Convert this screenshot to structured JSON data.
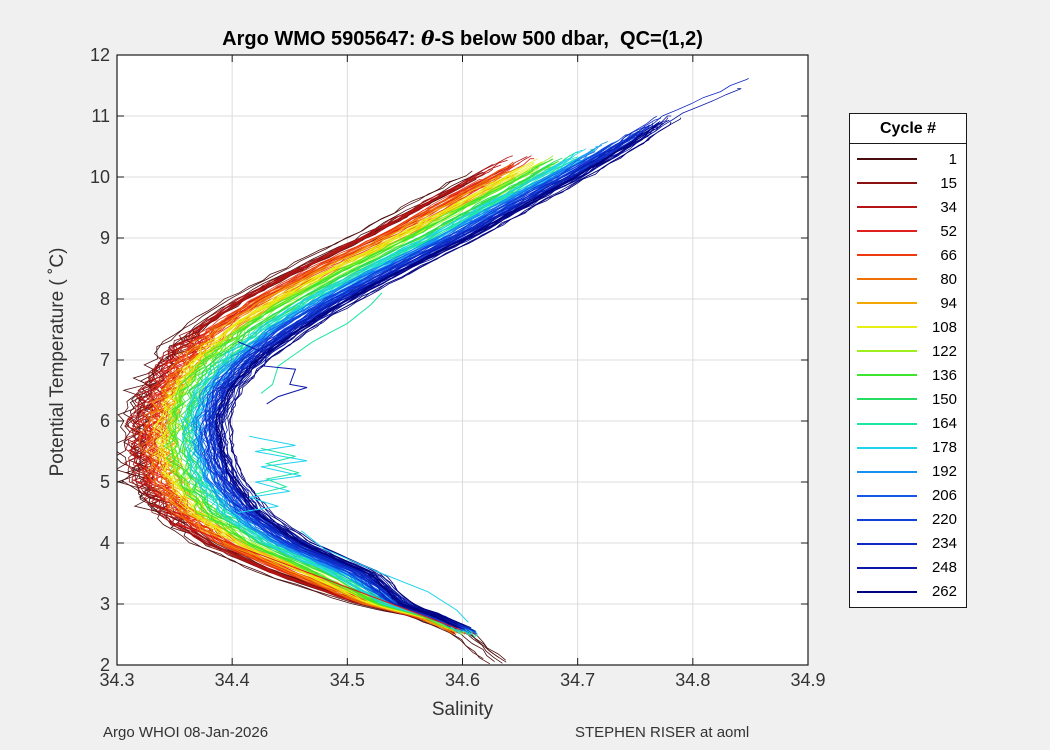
{
  "header": {
    "title_prefix": "Argo WMO 5905647: ",
    "title_theta": "θ",
    "title_suffix": "-S below 500 dbar,  QC=(1,2)"
  },
  "footer": {
    "left": "Argo WHOI 08-Jan-2026",
    "right": "STEPHEN RISER at aoml"
  },
  "chart_data": {
    "type": "line",
    "title": "Argo WMO 5905647: θ-S below 500 dbar, QC=(1,2)",
    "xlabel": "Salinity",
    "ylabel": "Potential Temperature ( ˚C)",
    "xlim": [
      34.3,
      34.9
    ],
    "ylim": [
      2,
      12
    ],
    "xticks": [
      "34.3",
      "34.4",
      "34.5",
      "34.6",
      "34.7",
      "34.8",
      "34.9"
    ],
    "yticks": [
      "2",
      "3",
      "4",
      "5",
      "6",
      "7",
      "8",
      "9",
      "10",
      "11",
      "12"
    ],
    "grid": true,
    "legend": {
      "title": "Cycle #",
      "position": "right-outside"
    },
    "colors": {
      "figure_bg": "#f0f0f0",
      "plot_bg": "#ffffff",
      "grid": "#dcdcdc",
      "axis": "#1a1a1a",
      "tick_text": "#333333"
    },
    "series_model": {
      "description": "C-shaped theta-S profiles for 262 Argo cycles; salinity of cycle with blend fraction f estimated as (1-f)*s_first_cycle + f*s_last_cycle along theta_grid; early cycles (red) are fresher, late cycles (blue) saltier and extend to higher theta",
      "theta_grid": [
        2.02,
        2.55,
        2.8,
        3.0,
        3.5,
        4.0,
        4.5,
        5.0,
        5.5,
        6.0,
        6.5,
        7.0,
        7.5,
        8.0,
        8.5,
        9.0,
        9.5,
        10.0,
        10.5,
        11.0,
        11.65
      ],
      "s_first_cycle": [
        34.632,
        34.598,
        34.565,
        34.515,
        34.435,
        34.375,
        34.338,
        34.32,
        34.314,
        34.316,
        34.326,
        34.34,
        34.365,
        34.405,
        34.455,
        34.51,
        34.558,
        34.608,
        34.655,
        34.702,
        34.758
      ],
      "s_last_cycle": [
        34.614,
        34.606,
        34.58,
        34.55,
        34.524,
        34.464,
        34.426,
        34.406,
        34.395,
        34.392,
        34.401,
        34.426,
        34.462,
        34.505,
        34.555,
        34.608,
        34.655,
        34.703,
        34.747,
        34.785,
        34.865
      ]
    },
    "cycles": [
      {
        "label": "1",
        "color": "#4a0d0d",
        "f": 0.0,
        "theta_top": 10.1,
        "theta_bot": 2.02
      },
      {
        "label": "15",
        "color": "#8a1111",
        "f": 0.056,
        "theta_top": 10.2,
        "theta_bot": 2.5
      },
      {
        "label": "34",
        "color": "#b51414",
        "f": 0.111,
        "theta_top": 10.35,
        "theta_bot": 2.52
      },
      {
        "label": "52",
        "color": "#e01f1f",
        "f": 0.167,
        "theta_top": 10.3,
        "theta_bot": 2.5
      },
      {
        "label": "66",
        "color": "#ee3810",
        "f": 0.222,
        "theta_top": 10.25,
        "theta_bot": 2.55
      },
      {
        "label": "80",
        "color": "#f07008",
        "f": 0.278,
        "theta_top": 10.2,
        "theta_bot": 2.5
      },
      {
        "label": "94",
        "color": "#f2a705",
        "f": 0.333,
        "theta_top": 10.15,
        "theta_bot": 2.52
      },
      {
        "label": "108",
        "color": "#e8ef12",
        "f": 0.389,
        "theta_top": 10.3,
        "theta_bot": 2.55
      },
      {
        "label": "122",
        "color": "#9df01e",
        "f": 0.444,
        "theta_top": 10.35,
        "theta_bot": 2.5
      },
      {
        "label": "136",
        "color": "#3fe42e",
        "f": 0.5,
        "theta_top": 10.3,
        "theta_bot": 2.55
      },
      {
        "label": "150",
        "color": "#25dd62",
        "f": 0.556,
        "theta_top": 10.4,
        "theta_bot": 2.5
      },
      {
        "label": "164",
        "color": "#1be6a3",
        "f": 0.611,
        "theta_top": 10.45,
        "theta_bot": 2.45
      },
      {
        "label": "178",
        "color": "#20d3ee",
        "f": 0.667,
        "theta_top": 10.5,
        "theta_bot": 2.5
      },
      {
        "label": "192",
        "color": "#1592f0",
        "f": 0.722,
        "theta_top": 10.6,
        "theta_bot": 2.55
      },
      {
        "label": "206",
        "color": "#1458ea",
        "f": 0.778,
        "theta_top": 10.75,
        "theta_bot": 2.5
      },
      {
        "label": "220",
        "color": "#1240d8",
        "f": 0.833,
        "theta_top": 10.85,
        "theta_bot": 2.55
      },
      {
        "label": "234",
        "color": "#0e2ac4",
        "f": 0.889,
        "theta_top": 11.62,
        "theta_bot": 2.6
      },
      {
        "label": "248",
        "color": "#0918a8",
        "f": 0.944,
        "theta_top": 11.45,
        "theta_bot": 2.55
      },
      {
        "label": "262",
        "color": "#03037f",
        "f": 1.0,
        "theta_top": 11.0,
        "theta_bot": 2.6
      }
    ],
    "outliers": [
      {
        "name": "cyan-zigzag",
        "color": "#20d3ee",
        "pts": [
          [
            34.415,
            5.75
          ],
          [
            34.455,
            5.6
          ],
          [
            34.42,
            5.5
          ],
          [
            34.465,
            5.35
          ],
          [
            34.425,
            5.25
          ],
          [
            34.46,
            5.1
          ],
          [
            34.42,
            5.0
          ],
          [
            34.45,
            4.85
          ],
          [
            34.415,
            4.75
          ],
          [
            34.44,
            4.6
          ],
          [
            34.405,
            4.5
          ]
        ]
      },
      {
        "name": "teal-zigzag",
        "color": "#1be6a3",
        "pts": [
          [
            34.425,
            5.55
          ],
          [
            34.455,
            5.42
          ],
          [
            34.43,
            5.3
          ],
          [
            34.458,
            5.15
          ],
          [
            34.43,
            5.05
          ],
          [
            34.447,
            4.92
          ],
          [
            34.42,
            4.8
          ]
        ]
      },
      {
        "name": "teal-arc",
        "color": "#1be6a3",
        "pts": [
          [
            34.53,
            8.1
          ],
          [
            34.52,
            7.9
          ],
          [
            34.5,
            7.6
          ],
          [
            34.47,
            7.3
          ],
          [
            34.455,
            7.1
          ],
          [
            34.44,
            6.9
          ],
          [
            34.435,
            6.6
          ],
          [
            34.425,
            6.45
          ]
        ]
      },
      {
        "name": "cyan-lower-arc",
        "color": "#20d3ee",
        "pts": [
          [
            34.46,
            4.2
          ],
          [
            34.48,
            3.9
          ],
          [
            34.53,
            3.5
          ],
          [
            34.57,
            3.2
          ],
          [
            34.595,
            2.9
          ],
          [
            34.605,
            2.7
          ]
        ]
      },
      {
        "name": "navy-step",
        "color": "#0918a8",
        "pts": [
          [
            34.405,
            7.3
          ],
          [
            34.43,
            7.1
          ],
          [
            34.428,
            6.9
          ],
          [
            34.455,
            6.85
          ],
          [
            34.45,
            6.6
          ],
          [
            34.465,
            6.55
          ],
          [
            34.44,
            6.4
          ],
          [
            34.43,
            6.28
          ]
        ]
      },
      {
        "name": "red-chord",
        "color": "#dd1c1c",
        "pts": [
          [
            34.352,
            4.32
          ],
          [
            34.598,
            2.58
          ]
        ]
      }
    ]
  }
}
